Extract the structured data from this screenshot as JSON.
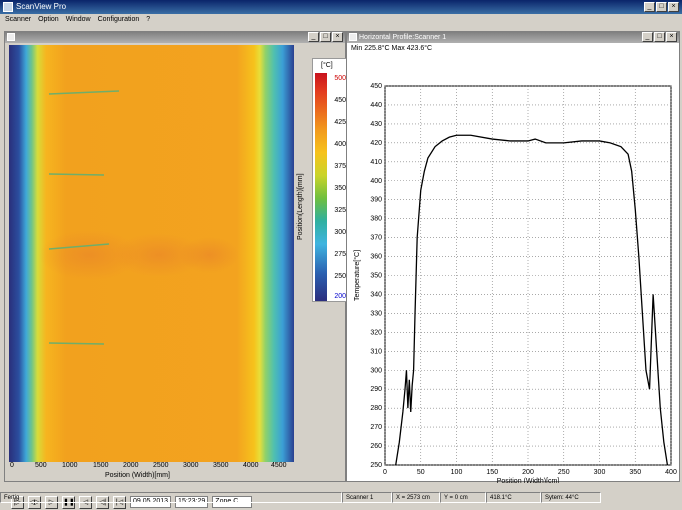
{
  "app": {
    "title": "ScanView Pro"
  },
  "menu": [
    "Scanner",
    "Option",
    "Window",
    "Configuration",
    "?"
  ],
  "left_window": {
    "colorbar": {
      "unit": "[°C]",
      "labels": [
        "500",
        "450",
        "425",
        "400",
        "375",
        "350",
        "325",
        "300",
        "275",
        "250",
        "200"
      ]
    },
    "y_axis_label": "Position(Length)[mm]",
    "x_ticks": [
      "0",
      "500",
      "1000",
      "1500",
      "2000",
      "2500",
      "3000",
      "3500",
      "4000",
      "4500"
    ],
    "x_axis_label": "Position (Width)[mm]",
    "controls": {
      "date": "09.05.2013",
      "time": "15:23:29",
      "zone": "Zone C"
    }
  },
  "right_window": {
    "title": "Horizontal Profile:Scanner 1",
    "minmax": "Min 225.8°C  Max 423.6°C"
  },
  "chart_data": {
    "type": "line",
    "xlabel": "Position (Width)[cm]",
    "ylabel": "Temperature[°C]",
    "xlim": [
      0,
      400
    ],
    "ylim": [
      250,
      450
    ],
    "x_ticks": [
      0,
      50,
      100,
      150,
      200,
      250,
      300,
      350,
      400
    ],
    "y_ticks": [
      250,
      260,
      270,
      280,
      290,
      300,
      310,
      320,
      330,
      340,
      350,
      360,
      370,
      380,
      390,
      400,
      410,
      420,
      430,
      440,
      450
    ],
    "grid": true,
    "series": [
      {
        "x": [
          15,
          20,
          25,
          28,
          30,
          32,
          34,
          36,
          38,
          40,
          42,
          45,
          50,
          55,
          60,
          70,
          80,
          90,
          100,
          120,
          150,
          175,
          200,
          210,
          225,
          250,
          275,
          300,
          315,
          330,
          340,
          345,
          350,
          355,
          360,
          365,
          370,
          375,
          380,
          385,
          390,
          395
        ],
        "y": [
          250,
          262,
          278,
          290,
          300,
          280,
          295,
          278,
          292,
          300,
          330,
          370,
          395,
          405,
          412,
          418,
          421,
          423,
          424,
          424,
          422,
          421,
          421,
          422,
          420,
          420,
          421,
          421,
          420,
          418,
          414,
          405,
          385,
          360,
          330,
          300,
          290,
          340,
          310,
          280,
          262,
          250
        ]
      }
    ]
  },
  "status": {
    "ready": "Fertig",
    "scanner": "Scanner 1",
    "x": "X = 2573 cm",
    "y": "Y = 0 cm",
    "temp": "418.1°C",
    "sys": "Sytem: 44°C"
  }
}
